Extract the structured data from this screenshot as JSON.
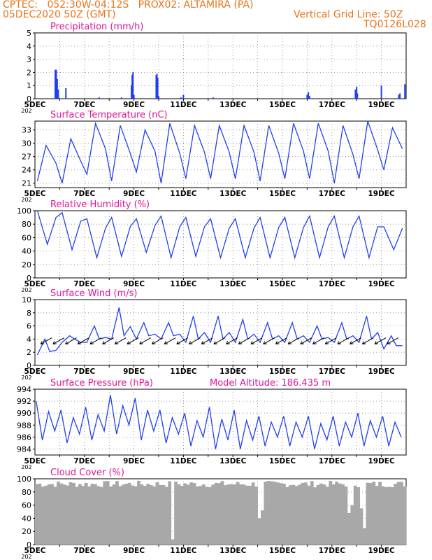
{
  "header": {
    "line1": "CPTEC:   052:30W-04:12S   PROX02: ALTAMIRA (PA)",
    "line2": "05DEC2020 50Z (GMT)",
    "grid_note": "Vertical Grid Line: 50Z",
    "code": "TQ0126L028"
  },
  "colors": {
    "header": "#e8731a",
    "panel_title": "#e0149a",
    "series": "#1f3ff0",
    "cloud": "#a8a8a8",
    "arrow": "#000000"
  },
  "x_axis": {
    "ticks": [
      "5DEC",
      "7DEC",
      "9DEC",
      "11DEC",
      "13DEC",
      "15DEC",
      "17DEC",
      "19DEC"
    ],
    "minor_label": "202"
  },
  "chart_data": [
    {
      "type": "bar",
      "title": "Precipitation (mm/h)",
      "ylim": [
        0,
        5
      ],
      "yticks": [
        "0",
        "1",
        "2",
        "3",
        "4",
        "5"
      ],
      "x_range_days": [
        5,
        20
      ],
      "bars": [
        [
          5.82,
          2.2
        ],
        [
          5.86,
          2.2
        ],
        [
          5.9,
          1.5
        ],
        [
          5.94,
          0.7
        ],
        [
          6.25,
          0.8
        ],
        [
          7.6,
          0.1
        ],
        [
          8.5,
          0.1
        ],
        [
          8.9,
          1.0
        ],
        [
          8.93,
          1.8
        ],
        [
          8.96,
          2.0
        ],
        [
          9.0,
          0.3
        ],
        [
          9.9,
          1.8
        ],
        [
          9.93,
          1.9
        ],
        [
          9.96,
          1.6
        ],
        [
          10.0,
          0.2
        ],
        [
          10.9,
          0.1
        ],
        [
          11.0,
          0.3
        ],
        [
          12.2,
          0.1
        ],
        [
          16.0,
          0.3
        ],
        [
          16.05,
          0.5
        ],
        [
          16.1,
          0.2
        ],
        [
          17.95,
          0.7
        ],
        [
          18.0,
          0.9
        ],
        [
          18.03,
          0.4
        ],
        [
          19.0,
          1.0
        ],
        [
          19.7,
          0.3
        ],
        [
          19.75,
          0.4
        ],
        [
          19.95,
          1.1
        ]
      ]
    },
    {
      "type": "line",
      "title": "Surface Temperature (nC)",
      "ylim": [
        20,
        35
      ],
      "yticks": [
        "21",
        "24",
        "27",
        "30",
        "33"
      ],
      "x_range_days": [
        5,
        20
      ],
      "max_by_day": [
        29.5,
        31.0,
        34.5,
        34.0,
        33.0,
        34.5,
        34.0,
        34.0,
        34.0,
        34.0,
        34.5,
        34.5,
        34.0,
        35.0,
        33.5
      ],
      "min_by_day": [
        21.5,
        21.0,
        23.0,
        21.5,
        23.5,
        21.0,
        22.0,
        22.0,
        22.0,
        21.5,
        22.0,
        22.0,
        21.0,
        22.0,
        24.0
      ]
    },
    {
      "type": "line",
      "title": "Relative Humidity (%)",
      "ylim": [
        0,
        100
      ],
      "yticks": [
        "0",
        "20",
        "40",
        "60",
        "80",
        "100"
      ],
      "x_range_days": [
        5,
        20
      ],
      "max_by_day": [
        100,
        97,
        88,
        90,
        88,
        92,
        90,
        88,
        88,
        90,
        90,
        92,
        92,
        92,
        76
      ],
      "min_by_day": [
        50,
        42,
        30,
        32,
        38,
        30,
        32,
        30,
        30,
        30,
        30,
        30,
        30,
        30,
        42
      ]
    },
    {
      "type": "line",
      "title": "Surface Wind (m/s)",
      "ylim": [
        0,
        10
      ],
      "yticks": [
        "0",
        "2",
        "4",
        "6",
        "8",
        "10"
      ],
      "x_range_days": [
        5,
        20
      ],
      "max_by_day": [
        4.0,
        4.5,
        6.0,
        8.8,
        6.5,
        6.5,
        7.5,
        7.5,
        7.0,
        6.5,
        6.5,
        6.0,
        6.5,
        7.5,
        4.5
      ],
      "min_by_day": [
        0.6,
        2.5,
        2.5,
        3.0,
        3.0,
        3.0,
        2.5,
        2.5,
        2.5,
        2.5,
        2.5,
        2.5,
        2.5,
        2.5,
        1.5
      ],
      "vectors_note": "wind vectors mostly from NE"
    },
    {
      "type": "line",
      "title": "Surface Pressure (hPa)",
      "annotation": "Model Altitude: 186.435  m",
      "ylim": [
        983,
        994
      ],
      "yticks": [
        "984",
        "986",
        "988",
        "990",
        "992",
        "994"
      ],
      "x_range_days": [
        5,
        20
      ],
      "high_by_day": [
        992.0,
        990.5,
        991.0,
        993.0,
        992.5,
        990.5,
        990.0,
        991.0,
        990.5,
        989.5,
        989.5,
        989.5,
        989.5,
        990.0,
        989.5
      ],
      "low_by_day": [
        985.5,
        985.0,
        985.5,
        986.5,
        985.5,
        985.0,
        984.5,
        984.0,
        984.0,
        984.5,
        984.5,
        984.0,
        984.5,
        984.5,
        984.5
      ]
    },
    {
      "type": "bar",
      "title": "Cloud Cover (%)",
      "ylim": [
        0,
        100
      ],
      "yticks": [
        "0",
        "20",
        "40",
        "60",
        "80",
        "100"
      ],
      "x_range_days": [
        5,
        20
      ],
      "typical_value": 92,
      "dips": [
        [
          10.5,
          8
        ],
        [
          14.0,
          40
        ],
        [
          14.1,
          0
        ],
        [
          14.15,
          52
        ],
        [
          17.65,
          48
        ],
        [
          17.7,
          60
        ],
        [
          18.1,
          55
        ],
        [
          18.2,
          30
        ],
        [
          18.3,
          25
        ]
      ]
    }
  ]
}
